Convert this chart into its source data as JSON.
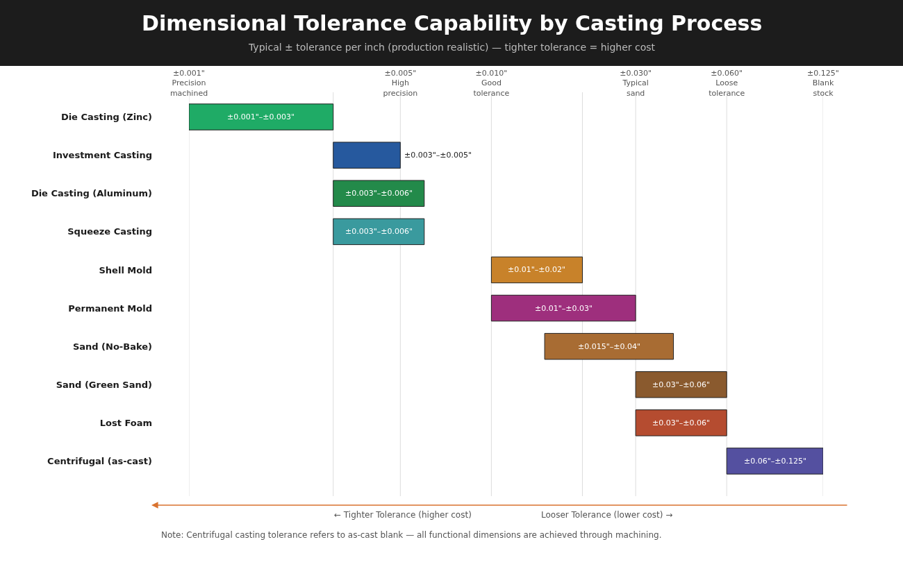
{
  "chart_data": {
    "type": "bar",
    "orientation": "horizontal",
    "title": "Dimensional Tolerance Capability by Casting Process",
    "subtitle": "Typical ± tolerance per inch (production realistic) — tighter tolerance = higher cost",
    "categories": [
      "Die Casting (Zinc)",
      "Investment Casting",
      "Die Casting (Aluminum)",
      "Squeeze Casting",
      "Shell Mold",
      "Permanent Mold",
      "Sand (No-Bake)",
      "Sand (Green Sand)",
      "Lost Foam",
      "Centrifugal (as-cast)"
    ],
    "base": [
      0.001,
      0.003,
      0.003,
      0.003,
      0.01,
      0.01,
      0.015,
      0.03,
      0.03,
      0.06
    ],
    "values": [
      0.002,
      0.002,
      0.003,
      0.003,
      0.01,
      0.02,
      0.025,
      0.03,
      0.03,
      0.065
    ],
    "value_labels": [
      "±0.001\"–±0.003\"",
      "±0.003\"–±0.005\"",
      "±0.003\"–±0.006\"",
      "±0.003\"–±0.006\"",
      "±0.01\"–±0.02\"",
      "±0.01\"–±0.03\"",
      "±0.015\"–±0.04\"",
      "±0.03\"–±0.06\"",
      "±0.03\"–±0.06\"",
      "±0.06\"–±0.125\""
    ],
    "colors": [
      "#1fab66",
      "#26599e",
      "#238a4a",
      "#3a9a9e",
      "#c8822a",
      "#9e2f7d",
      "#a86c33",
      "#8a5a2e",
      "#b54c30",
      "#5450a0"
    ],
    "log": "x",
    "xlim": [
      0.001,
      0.125
    ],
    "xticks": [
      {
        "value": 0.001,
        "label": "±0.001\"\nPrecision\nmachined"
      },
      {
        "value": 0.003,
        "label": null
      },
      {
        "value": 0.005,
        "label": "±0.005\"\nHigh\nprecision"
      },
      {
        "value": 0.01,
        "label": "±0.010\"\nGood\ntolerance"
      },
      {
        "value": 0.02,
        "label": null
      },
      {
        "value": 0.03,
        "label": "±0.030\"\nTypical\nsand"
      },
      {
        "value": 0.06,
        "label": "±0.060\"\nLoose\ntolerance"
      },
      {
        "value": 0.125,
        "label": "±0.125\"\nBlank\nstock"
      }
    ],
    "grid": "x",
    "annotations": [
      "← Tighter Tolerance (higher cost)",
      "Looser Tolerance (lower cost) →",
      "Note: Centrifugal casting tolerance refers to as-cast blank — all functional dimensions are achieved through machining."
    ]
  }
}
